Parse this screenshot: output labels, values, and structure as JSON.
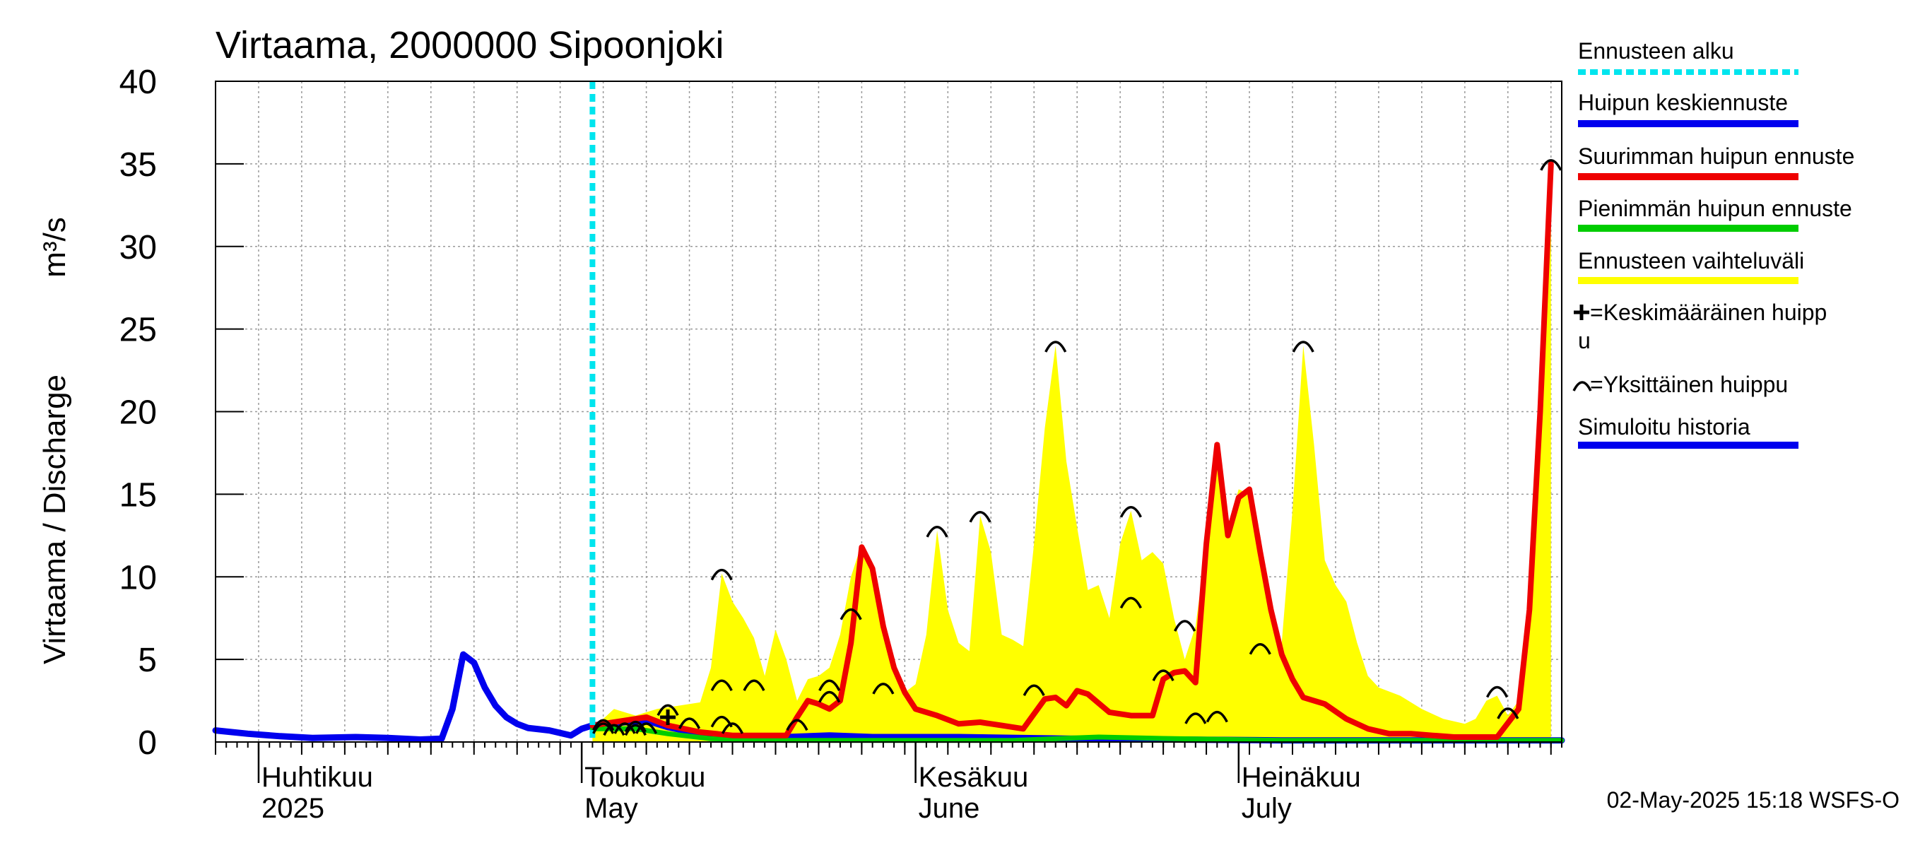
{
  "chart_data": {
    "type": "area",
    "title": "Virtaama, 2000000 Sipoonjoki",
    "ylabel": "Virtaama / Discharge",
    "yunit": "m³/s",
    "ylim": [
      0,
      40
    ],
    "yticks": [
      0,
      5,
      10,
      15,
      20,
      25,
      30,
      35,
      40
    ],
    "xlim": [
      "2025-03-28",
      "2025-07-31"
    ],
    "grid": true,
    "legend_placement": "right",
    "month_labels": [
      {
        "date": "2025-04-01",
        "fi": "Huhtikuu",
        "en": "2025"
      },
      {
        "date": "2025-05-01",
        "fi": "Toukokuu",
        "en": "May"
      },
      {
        "date": "2025-06-01",
        "fi": "Kesäkuu",
        "en": "June"
      },
      {
        "date": "2025-07-01",
        "fi": "Heinäkuu",
        "en": "July"
      }
    ],
    "forecast_start": "2025-05-02",
    "timestamp": "02-May-2025 15:18 WSFS-O",
    "legend": [
      {
        "label": "Ennusteen alku",
        "color": "#00e5ee",
        "style": "dashed"
      },
      {
        "label": "Huipun keskiennuste",
        "color": "#0000ee",
        "style": "solid"
      },
      {
        "label": "Suurimman huipun ennuste",
        "color": "#ee0000",
        "style": "solid"
      },
      {
        "label": "Pienimmän huipun ennuste",
        "color": "#00cc00",
        "style": "solid"
      },
      {
        "label": "Ennusteen vaihteluväli",
        "color": "#ffff00",
        "style": "solid"
      },
      {
        "label": "=Keskimääräinen huipp u",
        "color": "#000000",
        "style": "plus"
      },
      {
        "label": "=Yksittäinen huippu",
        "color": "#000000",
        "style": "arc"
      },
      {
        "label": "Simuloitu historia",
        "color": "#0000ee",
        "style": "solid"
      }
    ],
    "series": [
      {
        "name": "Simuloitu historia",
        "color": "#0000ee",
        "points": [
          [
            "2025-03-28",
            0.7
          ],
          [
            "2025-03-31",
            0.5
          ],
          [
            "2025-04-03",
            0.35
          ],
          [
            "2025-04-06",
            0.25
          ],
          [
            "2025-04-10",
            0.3
          ],
          [
            "2025-04-13",
            0.25
          ],
          [
            "2025-04-16",
            0.15
          ],
          [
            "2025-04-18",
            0.2
          ],
          [
            "2025-04-19",
            2.0
          ],
          [
            "2025-04-20",
            5.3
          ],
          [
            "2025-04-21",
            4.8
          ],
          [
            "2025-04-22",
            3.3
          ],
          [
            "2025-04-23",
            2.2
          ],
          [
            "2025-04-24",
            1.5
          ],
          [
            "2025-04-25",
            1.1
          ],
          [
            "2025-04-26",
            0.85
          ],
          [
            "2025-04-28",
            0.7
          ],
          [
            "2025-04-30",
            0.4
          ],
          [
            "2025-05-01",
            0.8
          ],
          [
            "2025-05-02",
            1.0
          ]
        ]
      },
      {
        "name": "Huipun keskiennuste",
        "color": "#0000ee",
        "points": [
          [
            "2025-05-02",
            1.0
          ],
          [
            "2025-05-05",
            1.2
          ],
          [
            "2025-05-07",
            1.3
          ],
          [
            "2025-05-09",
            0.9
          ],
          [
            "2025-05-12",
            0.5
          ],
          [
            "2025-05-15",
            0.3
          ],
          [
            "2025-05-20",
            0.3
          ],
          [
            "2025-05-24",
            0.4
          ],
          [
            "2025-05-28",
            0.3
          ],
          [
            "2025-06-05",
            0.3
          ],
          [
            "2025-06-15",
            0.2
          ],
          [
            "2025-06-25",
            0.15
          ],
          [
            "2025-07-05",
            0.1
          ],
          [
            "2025-07-15",
            0.1
          ],
          [
            "2025-07-31",
            0.1
          ]
        ]
      },
      {
        "name": "Pienimmän huipun ennuste",
        "color": "#00cc00",
        "points": [
          [
            "2025-05-02",
            0.8
          ],
          [
            "2025-05-06",
            0.8
          ],
          [
            "2025-05-09",
            0.5
          ],
          [
            "2025-05-13",
            0.2
          ],
          [
            "2025-05-20",
            0.1
          ],
          [
            "2025-05-25",
            0.1
          ],
          [
            "2025-06-10",
            0.1
          ],
          [
            "2025-06-18",
            0.3
          ],
          [
            "2025-06-25",
            0.2
          ],
          [
            "2025-07-05",
            0.1
          ],
          [
            "2025-07-31",
            0.1
          ]
        ]
      },
      {
        "name": "Suurimman huipun ennuste",
        "color": "#ee0000",
        "points": [
          [
            "2025-05-02",
            1.0
          ],
          [
            "2025-05-05",
            1.3
          ],
          [
            "2025-05-07",
            1.5
          ],
          [
            "2025-05-09",
            1.0
          ],
          [
            "2025-05-12",
            0.6
          ],
          [
            "2025-05-15",
            0.4
          ],
          [
            "2025-05-20",
            0.4
          ],
          [
            "2025-05-21",
            1.5
          ],
          [
            "2025-05-22",
            2.5
          ],
          [
            "2025-05-23",
            2.3
          ],
          [
            "2025-05-24",
            2.0
          ],
          [
            "2025-05-25",
            2.5
          ],
          [
            "2025-05-26",
            6.0
          ],
          [
            "2025-05-27",
            11.8
          ],
          [
            "2025-05-28",
            10.5
          ],
          [
            "2025-05-29",
            7.0
          ],
          [
            "2025-05-30",
            4.5
          ],
          [
            "2025-05-31",
            3.0
          ],
          [
            "2025-06-01",
            2.0
          ],
          [
            "2025-06-03",
            1.6
          ],
          [
            "2025-06-05",
            1.1
          ],
          [
            "2025-06-07",
            1.2
          ],
          [
            "2025-06-09",
            1.0
          ],
          [
            "2025-06-11",
            0.8
          ],
          [
            "2025-06-13",
            2.6
          ],
          [
            "2025-06-14",
            2.7
          ],
          [
            "2025-06-15",
            2.2
          ],
          [
            "2025-06-16",
            3.1
          ],
          [
            "2025-06-17",
            2.9
          ],
          [
            "2025-06-19",
            1.8
          ],
          [
            "2025-06-21",
            1.6
          ],
          [
            "2025-06-23",
            1.6
          ],
          [
            "2025-06-24",
            3.8
          ],
          [
            "2025-06-25",
            4.2
          ],
          [
            "2025-06-26",
            4.3
          ],
          [
            "2025-06-27",
            3.6
          ],
          [
            "2025-06-28",
            12.0
          ],
          [
            "2025-06-29",
            18.0
          ],
          [
            "2025-06-30",
            12.5
          ],
          [
            "2025-07-01",
            14.8
          ],
          [
            "2025-07-02",
            15.3
          ],
          [
            "2025-07-03",
            11.5
          ],
          [
            "2025-07-04",
            8.0
          ],
          [
            "2025-07-05",
            5.3
          ],
          [
            "2025-07-06",
            3.8
          ],
          [
            "2025-07-07",
            2.7
          ],
          [
            "2025-07-09",
            2.3
          ],
          [
            "2025-07-11",
            1.4
          ],
          [
            "2025-07-13",
            0.8
          ],
          [
            "2025-07-15",
            0.5
          ],
          [
            "2025-07-17",
            0.5
          ],
          [
            "2025-07-19",
            0.4
          ],
          [
            "2025-07-21",
            0.3
          ],
          [
            "2025-07-25",
            0.3
          ],
          [
            "2025-07-27",
            2.0
          ],
          [
            "2025-07-28",
            8.0
          ],
          [
            "2025-07-29",
            20.0
          ],
          [
            "2025-07-30",
            35.0
          ]
        ]
      }
    ],
    "range": {
      "name": "Ennusteen vaihteluväli",
      "color": "#ffff00",
      "upper": [
        [
          "2025-05-02",
          1.0
        ],
        [
          "2025-05-03",
          1.4
        ],
        [
          "2025-05-04",
          2.0
        ],
        [
          "2025-05-06",
          1.6
        ],
        [
          "2025-05-08",
          2.0
        ],
        [
          "2025-05-10",
          2.2
        ],
        [
          "2025-05-12",
          2.4
        ],
        [
          "2025-05-13",
          4.5
        ],
        [
          "2025-05-14",
          10.2
        ],
        [
          "2025-05-15",
          8.5
        ],
        [
          "2025-05-16",
          7.5
        ],
        [
          "2025-05-17",
          6.3
        ],
        [
          "2025-05-18",
          4.0
        ],
        [
          "2025-05-19",
          6.8
        ],
        [
          "2025-05-20",
          5.0
        ],
        [
          "2025-05-21",
          2.5
        ],
        [
          "2025-05-22",
          3.8
        ],
        [
          "2025-05-23",
          4.0
        ],
        [
          "2025-05-24",
          4.5
        ],
        [
          "2025-05-25",
          6.5
        ],
        [
          "2025-05-26",
          10.0
        ],
        [
          "2025-05-27",
          12.0
        ],
        [
          "2025-05-28",
          10.5
        ],
        [
          "2025-05-29",
          7.0
        ],
        [
          "2025-05-30",
          4.5
        ],
        [
          "2025-05-31",
          3.0
        ],
        [
          "2025-06-01",
          3.5
        ],
        [
          "2025-06-02",
          6.5
        ],
        [
          "2025-06-03",
          12.8
        ],
        [
          "2025-06-04",
          8.0
        ],
        [
          "2025-06-05",
          6.0
        ],
        [
          "2025-06-06",
          5.5
        ],
        [
          "2025-06-07",
          13.7
        ],
        [
          "2025-06-08",
          11.5
        ],
        [
          "2025-06-09",
          6.5
        ],
        [
          "2025-06-10",
          6.2
        ],
        [
          "2025-06-11",
          5.8
        ],
        [
          "2025-06-12",
          12.0
        ],
        [
          "2025-06-13",
          19.0
        ],
        [
          "2025-06-14",
          24.0
        ],
        [
          "2025-06-15",
          17.0
        ],
        [
          "2025-06-16",
          13.0
        ],
        [
          "2025-06-17",
          9.2
        ],
        [
          "2025-06-18",
          9.5
        ],
        [
          "2025-06-19",
          7.5
        ],
        [
          "2025-06-20",
          12.0
        ],
        [
          "2025-06-21",
          14.0
        ],
        [
          "2025-06-22",
          11.0
        ],
        [
          "2025-06-23",
          11.5
        ],
        [
          "2025-06-24",
          10.8
        ],
        [
          "2025-06-25",
          7.5
        ],
        [
          "2025-06-26",
          5.0
        ],
        [
          "2025-06-27",
          7.0
        ],
        [
          "2025-06-28",
          12.0
        ],
        [
          "2025-06-29",
          18.0
        ],
        [
          "2025-06-30",
          13.0
        ],
        [
          "2025-07-01",
          15.3
        ],
        [
          "2025-07-02",
          15.0
        ],
        [
          "2025-07-03",
          12.5
        ],
        [
          "2025-07-04",
          8.0
        ],
        [
          "2025-07-05",
          6.0
        ],
        [
          "2025-07-06",
          14.0
        ],
        [
          "2025-07-07",
          24.0
        ],
        [
          "2025-07-08",
          18.0
        ],
        [
          "2025-07-09",
          11.0
        ],
        [
          "2025-07-10",
          9.5
        ],
        [
          "2025-07-11",
          8.5
        ],
        [
          "2025-07-12",
          6.0
        ],
        [
          "2025-07-13",
          4.0
        ],
        [
          "2025-07-14",
          3.3
        ],
        [
          "2025-07-16",
          2.8
        ],
        [
          "2025-07-18",
          2.0
        ],
        [
          "2025-07-20",
          1.4
        ],
        [
          "2025-07-22",
          1.1
        ],
        [
          "2025-07-23",
          1.4
        ],
        [
          "2025-07-24",
          2.5
        ],
        [
          "2025-07-25",
          2.8
        ],
        [
          "2025-07-26",
          1.6
        ],
        [
          "2025-07-27",
          2.5
        ],
        [
          "2025-07-28",
          8.0
        ],
        [
          "2025-07-29",
          20.0
        ],
        [
          "2025-07-30",
          35.0
        ]
      ],
      "lower": [
        [
          "2025-05-02",
          0.0
        ],
        [
          "2025-07-30",
          0.0
        ]
      ]
    },
    "single_peaks": [
      [
        "2025-05-03",
        0.9
      ],
      [
        "2025-05-03",
        1.1
      ],
      [
        "2025-05-04",
        0.8
      ],
      [
        "2025-05-05",
        0.9
      ],
      [
        "2025-05-06",
        0.8
      ],
      [
        "2025-05-06",
        1.0
      ],
      [
        "2025-05-07",
        0.9
      ],
      [
        "2025-05-09",
        2.0
      ],
      [
        "2025-05-11",
        1.2
      ],
      [
        "2025-05-14",
        10.2
      ],
      [
        "2025-05-14",
        3.5
      ],
      [
        "2025-05-14",
        1.3
      ],
      [
        "2025-05-15",
        0.9
      ],
      [
        "2025-05-17",
        3.5
      ],
      [
        "2025-05-21",
        1.1
      ],
      [
        "2025-05-24",
        3.5
      ],
      [
        "2025-05-24",
        2.8
      ],
      [
        "2025-05-26",
        7.8
      ],
      [
        "2025-05-29",
        3.3
      ],
      [
        "2025-06-03",
        12.8
      ],
      [
        "2025-06-07",
        13.7
      ],
      [
        "2025-06-12",
        3.2
      ],
      [
        "2025-06-14",
        24.0
      ],
      [
        "2025-06-21",
        14.0
      ],
      [
        "2025-06-21",
        8.5
      ],
      [
        "2025-06-24",
        4.1
      ],
      [
        "2025-06-26",
        7.1
      ],
      [
        "2025-06-27",
        1.5
      ],
      [
        "2025-06-29",
        1.6
      ],
      [
        "2025-07-03",
        5.7
      ],
      [
        "2025-07-07",
        24.0
      ],
      [
        "2025-07-25",
        3.1
      ],
      [
        "2025-07-26",
        1.8
      ],
      [
        "2025-07-30",
        35.0
      ]
    ],
    "average_peaks": [
      [
        "2025-05-09",
        1.5
      ]
    ]
  }
}
